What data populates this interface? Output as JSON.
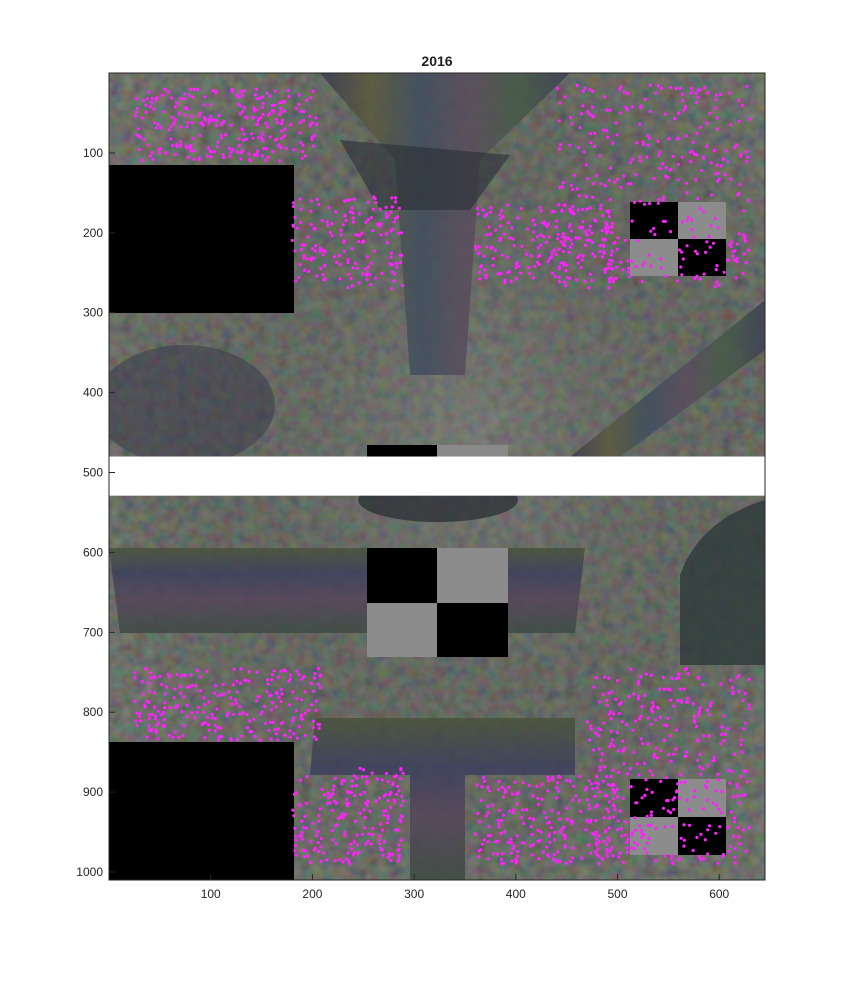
{
  "chart_data": {
    "type": "scatter",
    "title": "2016",
    "xlabel": "",
    "ylabel": "",
    "xlim": [
      0,
      645
    ],
    "ylim": [
      0,
      1010
    ],
    "y_reversed": true,
    "xticks": [
      100,
      200,
      300,
      400,
      500,
      600
    ],
    "yticks": [
      100,
      200,
      300,
      400,
      500,
      600,
      700,
      800,
      900,
      1000
    ],
    "marker_color": "#ff22ff",
    "background": "textured image (dark mottled green/red noise with striped geometric objects, black boxes and checkerboard targets)",
    "gap_band": {
      "from": 480,
      "to": 529
    },
    "clusters": [
      {
        "name": "upper-left-top",
        "xmin": 25,
        "xmax": 205,
        "ymin": 20,
        "ymax": 110,
        "count": 260
      },
      {
        "name": "upper-mid-left",
        "xmin": 180,
        "xmax": 290,
        "ymin": 155,
        "ymax": 270,
        "count": 160
      },
      {
        "name": "upper-mid-right",
        "xmin": 360,
        "xmax": 500,
        "ymin": 165,
        "ymax": 265,
        "count": 190
      },
      {
        "name": "upper-right",
        "xmin": 440,
        "xmax": 630,
        "ymin": 15,
        "ymax": 270,
        "count": 330
      },
      {
        "name": "lower-left-top",
        "xmin": 25,
        "xmax": 210,
        "ymin": 745,
        "ymax": 835,
        "count": 240
      },
      {
        "name": "lower-mid-left",
        "xmin": 180,
        "xmax": 290,
        "ymin": 870,
        "ymax": 990,
        "count": 190
      },
      {
        "name": "lower-mid-right",
        "xmin": 360,
        "xmax": 500,
        "ymin": 880,
        "ymax": 990,
        "count": 200
      },
      {
        "name": "lower-right",
        "xmin": 470,
        "xmax": 630,
        "ymin": 745,
        "ymax": 990,
        "count": 360
      }
    ]
  }
}
